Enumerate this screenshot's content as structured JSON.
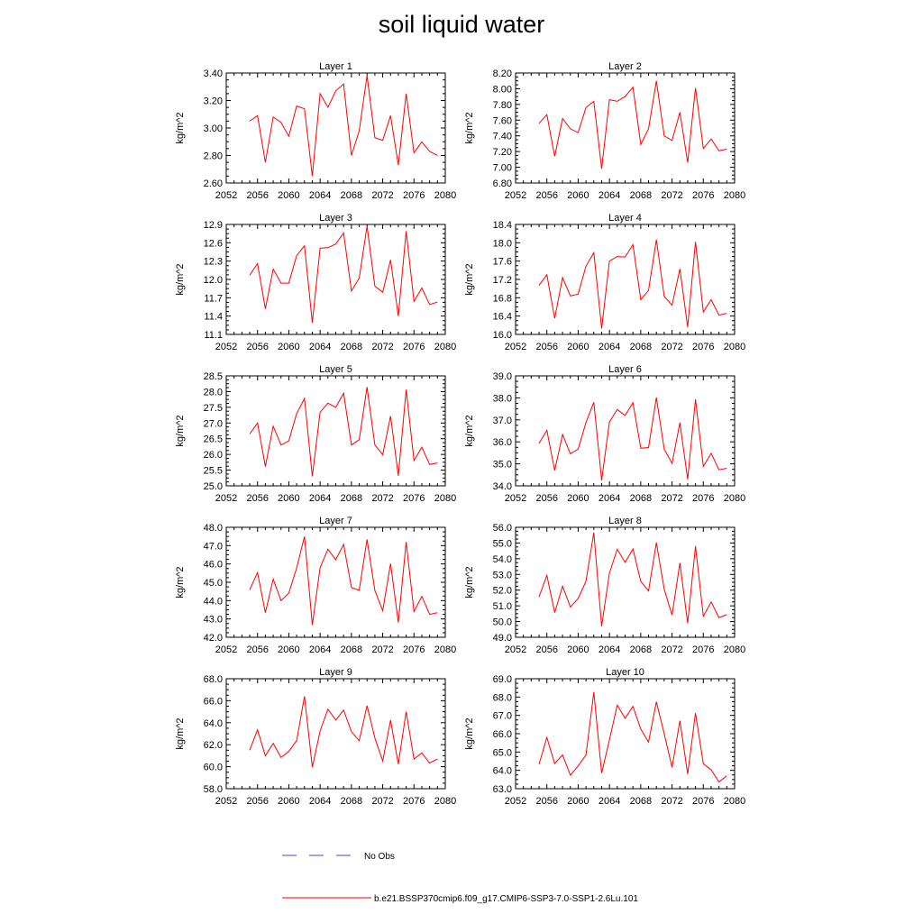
{
  "title": "soil liquid water",
  "legend": [
    {
      "label": "No Obs",
      "color": "#3b4fd6",
      "dashed": true
    },
    {
      "label": "b.e21.BSSP370cmip6.f09_g17.CMIP6-SSP3-7.0-SSP1-2.6Lu.101",
      "color": "#ff0000",
      "dashed": false
    }
  ],
  "chart_data": [
    {
      "type": "line",
      "title": "Layer 1",
      "ylabel": "kg/m^2",
      "xlim": [
        2052,
        2080
      ],
      "xticks": [
        "2052",
        "2056",
        "2060",
        "2064",
        "2068",
        "2072",
        "2076",
        "2080"
      ],
      "ylim": [
        2.6,
        3.4
      ],
      "yticks": [
        "2.60",
        "2.80",
        "3.00",
        "3.20",
        "3.40"
      ],
      "x": [
        2055,
        2056,
        2057,
        2058,
        2059,
        2060,
        2061,
        2062,
        2063,
        2064,
        2065,
        2066,
        2067,
        2068,
        2069,
        2070,
        2071,
        2072,
        2073,
        2074,
        2075,
        2076,
        2077,
        2078,
        2079
      ],
      "series": [
        {
          "name": "b.e21.BSSP370cmip6.f09_g17.CMIP6-SSP3-7.0-SSP1-2.6Lu.101",
          "color": "#ff0000",
          "values": [
            3.05,
            3.09,
            2.75,
            3.08,
            3.04,
            2.94,
            3.16,
            3.14,
            2.65,
            3.25,
            3.15,
            3.27,
            3.32,
            2.8,
            2.98,
            3.38,
            2.93,
            2.91,
            3.09,
            2.73,
            3.25,
            2.82,
            2.9,
            2.83,
            2.8
          ]
        }
      ]
    },
    {
      "type": "line",
      "title": "Layer 2",
      "ylabel": "kg/m^2",
      "xlim": [
        2052,
        2080
      ],
      "xticks": [
        "2052",
        "2056",
        "2060",
        "2064",
        "2068",
        "2072",
        "2076",
        "2080"
      ],
      "ylim": [
        6.8,
        8.2
      ],
      "yticks": [
        "6.80",
        "7.00",
        "7.20",
        "7.40",
        "7.60",
        "7.80",
        "8.00",
        "8.20"
      ],
      "x": [
        2055,
        2056,
        2057,
        2058,
        2059,
        2060,
        2061,
        2062,
        2063,
        2064,
        2065,
        2066,
        2067,
        2068,
        2069,
        2070,
        2071,
        2072,
        2073,
        2074,
        2075,
        2076,
        2077,
        2078,
        2079
      ],
      "series": [
        {
          "name": "b.e21.BSSP370cmip6.f09_g17.CMIP6-SSP3-7.0-SSP1-2.6Lu.101",
          "color": "#ff0000",
          "values": [
            7.56,
            7.67,
            7.14,
            7.62,
            7.49,
            7.44,
            7.76,
            7.84,
            6.98,
            7.86,
            7.84,
            7.9,
            8.02,
            7.29,
            7.49,
            8.1,
            7.4,
            7.34,
            7.7,
            7.06,
            8.01,
            7.24,
            7.36,
            7.21,
            7.23
          ]
        }
      ]
    },
    {
      "type": "line",
      "title": "Layer 3",
      "ylabel": "kg/m^2",
      "xlim": [
        2052,
        2080
      ],
      "xticks": [
        "2052",
        "2056",
        "2060",
        "2064",
        "2068",
        "2072",
        "2076",
        "2080"
      ],
      "ylim": [
        11.1,
        12.9
      ],
      "yticks": [
        "11.1",
        "11.4",
        "11.7",
        "12.0",
        "12.3",
        "12.6",
        "12.9"
      ],
      "x": [
        2055,
        2056,
        2057,
        2058,
        2059,
        2060,
        2061,
        2062,
        2063,
        2064,
        2065,
        2066,
        2067,
        2068,
        2069,
        2070,
        2071,
        2072,
        2073,
        2074,
        2075,
        2076,
        2077,
        2078,
        2079
      ],
      "series": [
        {
          "name": "b.e21.BSSP370cmip6.f09_g17.CMIP6-SSP3-7.0-SSP1-2.6Lu.101",
          "color": "#ff0000",
          "values": [
            12.07,
            12.26,
            11.52,
            12.17,
            11.94,
            11.94,
            12.39,
            12.55,
            11.29,
            12.51,
            12.52,
            12.58,
            12.76,
            11.81,
            12.02,
            12.87,
            11.89,
            11.79,
            12.32,
            11.4,
            12.79,
            11.64,
            11.86,
            11.59,
            11.63
          ]
        }
      ]
    },
    {
      "type": "line",
      "title": "Layer 4",
      "ylabel": "kg/m^2",
      "xlim": [
        2052,
        2080
      ],
      "xticks": [
        "2052",
        "2056",
        "2060",
        "2064",
        "2068",
        "2072",
        "2076",
        "2080"
      ],
      "ylim": [
        16.0,
        18.4
      ],
      "yticks": [
        "16.0",
        "16.4",
        "16.8",
        "17.2",
        "17.6",
        "18.0",
        "18.4"
      ],
      "x": [
        2055,
        2056,
        2057,
        2058,
        2059,
        2060,
        2061,
        2062,
        2063,
        2064,
        2065,
        2066,
        2067,
        2068,
        2069,
        2070,
        2071,
        2072,
        2073,
        2074,
        2075,
        2076,
        2077,
        2078,
        2079
      ],
      "series": [
        {
          "name": "b.e21.BSSP370cmip6.f09_g17.CMIP6-SSP3-7.0-SSP1-2.6Lu.101",
          "color": "#ff0000",
          "values": [
            17.07,
            17.3,
            16.35,
            17.24,
            16.84,
            16.88,
            17.49,
            17.78,
            16.13,
            17.6,
            17.7,
            17.69,
            17.96,
            16.76,
            16.96,
            18.07,
            16.83,
            16.64,
            17.43,
            16.16,
            18.02,
            16.49,
            16.76,
            16.42,
            16.46
          ]
        }
      ]
    },
    {
      "type": "line",
      "title": "Layer 5",
      "ylabel": "kg/m^2",
      "xlim": [
        2052,
        2080
      ],
      "xticks": [
        "2052",
        "2056",
        "2060",
        "2064",
        "2068",
        "2072",
        "2076",
        "2080"
      ],
      "ylim": [
        25.0,
        28.5
      ],
      "yticks": [
        "25.0",
        "25.5",
        "26.0",
        "26.5",
        "27.0",
        "27.5",
        "28.0",
        "28.5"
      ],
      "x": [
        2055,
        2056,
        2057,
        2058,
        2059,
        2060,
        2061,
        2062,
        2063,
        2064,
        2065,
        2066,
        2067,
        2068,
        2069,
        2070,
        2071,
        2072,
        2073,
        2074,
        2075,
        2076,
        2077,
        2078,
        2079
      ],
      "series": [
        {
          "name": "b.e21.BSSP370cmip6.f09_g17.CMIP6-SSP3-7.0-SSP1-2.6Lu.101",
          "color": "#ff0000",
          "values": [
            26.65,
            27.0,
            25.62,
            26.9,
            26.3,
            26.43,
            27.3,
            27.78,
            25.3,
            27.34,
            27.63,
            27.5,
            27.95,
            26.3,
            26.47,
            28.14,
            26.3,
            25.99,
            27.22,
            25.32,
            28.06,
            25.8,
            26.23,
            25.68,
            25.73
          ]
        }
      ]
    },
    {
      "type": "line",
      "title": "Layer 6",
      "ylabel": "kg/m^2",
      "xlim": [
        2052,
        2080
      ],
      "xticks": [
        "2052",
        "2056",
        "2060",
        "2064",
        "2068",
        "2072",
        "2076",
        "2080"
      ],
      "ylim": [
        34.0,
        39.0
      ],
      "yticks": [
        "34.0",
        "35.0",
        "36.0",
        "37.0",
        "38.0",
        "39.0"
      ],
      "x": [
        2055,
        2056,
        2057,
        2058,
        2059,
        2060,
        2061,
        2062,
        2063,
        2064,
        2065,
        2066,
        2067,
        2068,
        2069,
        2070,
        2071,
        2072,
        2073,
        2074,
        2075,
        2076,
        2077,
        2078,
        2079
      ],
      "series": [
        {
          "name": "b.e21.BSSP370cmip6.f09_g17.CMIP6-SSP3-7.0-SSP1-2.6Lu.101",
          "color": "#ff0000",
          "values": [
            35.93,
            36.52,
            34.7,
            36.33,
            35.46,
            35.67,
            36.88,
            37.8,
            34.25,
            36.9,
            37.47,
            37.2,
            37.78,
            35.71,
            35.74,
            38.02,
            35.67,
            35.02,
            36.87,
            34.3,
            37.93,
            34.88,
            35.48,
            34.73,
            34.8
          ]
        }
      ]
    },
    {
      "type": "line",
      "title": "Layer 7",
      "ylabel": "kg/m^2",
      "xlim": [
        2052,
        2080
      ],
      "xticks": [
        "2052",
        "2056",
        "2060",
        "2064",
        "2068",
        "2072",
        "2076",
        "2080"
      ],
      "ylim": [
        42.0,
        48.0
      ],
      "yticks": [
        "42.0",
        "43.0",
        "44.0",
        "45.0",
        "46.0",
        "47.0",
        "48.0"
      ],
      "x": [
        2055,
        2056,
        2057,
        2058,
        2059,
        2060,
        2061,
        2062,
        2063,
        2064,
        2065,
        2066,
        2067,
        2068,
        2069,
        2070,
        2071,
        2072,
        2073,
        2074,
        2075,
        2076,
        2077,
        2078,
        2079
      ],
      "series": [
        {
          "name": "b.e21.BSSP370cmip6.f09_g17.CMIP6-SSP3-7.0-SSP1-2.6Lu.101",
          "color": "#ff0000",
          "values": [
            44.58,
            45.53,
            43.34,
            45.17,
            44.0,
            44.41,
            45.77,
            47.5,
            42.67,
            45.79,
            46.81,
            46.23,
            47.07,
            44.71,
            44.56,
            47.34,
            44.55,
            43.45,
            46.02,
            42.8,
            47.2,
            43.4,
            44.23,
            43.25,
            43.34
          ]
        }
      ]
    },
    {
      "type": "line",
      "title": "Layer 8",
      "ylabel": "kg/m^2",
      "xlim": [
        2052,
        2080
      ],
      "xticks": [
        "2052",
        "2056",
        "2060",
        "2064",
        "2068",
        "2072",
        "2076",
        "2080"
      ],
      "ylim": [
        49.0,
        56.0
      ],
      "yticks": [
        "49.0",
        "50.0",
        "51.0",
        "52.0",
        "53.0",
        "54.0",
        "55.0",
        "56.0"
      ],
      "x": [
        2055,
        2056,
        2057,
        2058,
        2059,
        2060,
        2061,
        2062,
        2063,
        2064,
        2065,
        2066,
        2067,
        2068,
        2069,
        2070,
        2071,
        2072,
        2073,
        2074,
        2075,
        2076,
        2077,
        2078,
        2079
      ],
      "series": [
        {
          "name": "b.e21.BSSP370cmip6.f09_g17.CMIP6-SSP3-7.0-SSP1-2.6Lu.101",
          "color": "#ff0000",
          "values": [
            51.57,
            52.94,
            50.57,
            52.25,
            50.93,
            51.46,
            52.57,
            55.67,
            49.7,
            53.09,
            54.6,
            53.77,
            54.62,
            52.56,
            51.95,
            55.03,
            52.06,
            50.41,
            53.73,
            49.9,
            54.8,
            50.33,
            51.25,
            50.25,
            50.44
          ]
        }
      ]
    },
    {
      "type": "line",
      "title": "Layer 9",
      "ylabel": "kg/m^2",
      "xlim": [
        2052,
        2080
      ],
      "xticks": [
        "2052",
        "2056",
        "2060",
        "2064",
        "2068",
        "2072",
        "2076",
        "2080"
      ],
      "ylim": [
        58.0,
        68.0
      ],
      "yticks": [
        "58.0",
        "60.0",
        "62.0",
        "64.0",
        "66.0",
        "68.0"
      ],
      "x": [
        2055,
        2056,
        2057,
        2058,
        2059,
        2060,
        2061,
        2062,
        2063,
        2064,
        2065,
        2066,
        2067,
        2068,
        2069,
        2070,
        2071,
        2072,
        2073,
        2074,
        2075,
        2076,
        2077,
        2078,
        2079
      ],
      "series": [
        {
          "name": "b.e21.BSSP370cmip6.f09_g17.CMIP6-SSP3-7.0-SSP1-2.6Lu.101",
          "color": "#ff0000",
          "values": [
            61.5,
            63.35,
            60.99,
            62.13,
            60.84,
            61.39,
            62.37,
            66.39,
            59.96,
            63.24,
            65.23,
            64.25,
            65.14,
            63.18,
            62.36,
            65.55,
            62.61,
            60.52,
            64.23,
            60.23,
            65.0,
            60.69,
            61.26,
            60.34,
            60.7
          ]
        }
      ]
    },
    {
      "type": "line",
      "title": "Layer 10",
      "ylabel": "kg/m^2",
      "xlim": [
        2052,
        2080
      ],
      "xticks": [
        "2052",
        "2056",
        "2060",
        "2064",
        "2068",
        "2072",
        "2076",
        "2080"
      ],
      "ylim": [
        63.0,
        69.0
      ],
      "yticks": [
        "63.0",
        "64.0",
        "65.0",
        "66.0",
        "67.0",
        "68.0",
        "69.0"
      ],
      "x": [
        2055,
        2056,
        2057,
        2058,
        2059,
        2060,
        2061,
        2062,
        2063,
        2064,
        2065,
        2066,
        2067,
        2068,
        2069,
        2070,
        2071,
        2072,
        2073,
        2074,
        2075,
        2076,
        2077,
        2078,
        2079
      ],
      "series": [
        {
          "name": "b.e21.BSSP370cmip6.f09_g17.CMIP6-SSP3-7.0-SSP1-2.6Lu.101",
          "color": "#ff0000",
          "values": [
            64.33,
            65.8,
            64.37,
            64.84,
            63.74,
            64.24,
            64.84,
            68.27,
            63.85,
            65.66,
            67.56,
            66.84,
            67.49,
            66.25,
            65.55,
            67.74,
            66.0,
            64.16,
            66.71,
            63.8,
            67.12,
            64.36,
            64.03,
            63.37,
            63.7
          ]
        }
      ]
    }
  ]
}
